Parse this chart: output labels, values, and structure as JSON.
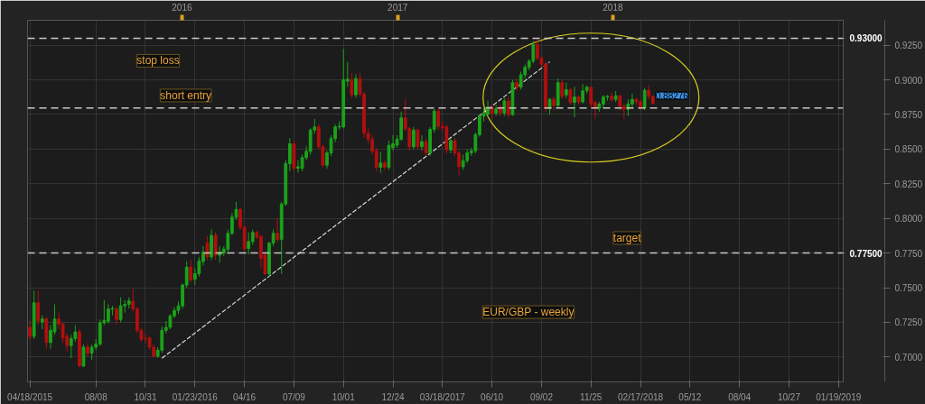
{
  "chart_data": {
    "type": "candlestick",
    "x": [
      "2015-04-18",
      "2015-04-25",
      "2015-05-02",
      "2015-05-09",
      "2015-05-16",
      "2015-05-23",
      "2015-05-30",
      "2015-06-06",
      "2015-06-13",
      "2015-06-20",
      "2015-06-27",
      "2015-07-04",
      "2015-07-11",
      "2015-07-18",
      "2015-07-25",
      "2015-08-01",
      "2015-08-08",
      "2015-08-15",
      "2015-08-22",
      "2015-08-29",
      "2015-09-05",
      "2015-09-12",
      "2015-09-19",
      "2015-09-26",
      "2015-10-03",
      "2015-10-10",
      "2015-10-17",
      "2015-10-24",
      "2015-10-31",
      "2015-11-07",
      "2015-11-14",
      "2015-11-21",
      "2015-11-28",
      "2015-12-05",
      "2015-12-12",
      "2015-12-19",
      "2015-12-26",
      "2016-01-02",
      "2016-01-09",
      "2016-01-16",
      "2016-01-23",
      "2016-01-30",
      "2016-02-06",
      "2016-02-13",
      "2016-02-20",
      "2016-02-27",
      "2016-03-05",
      "2016-03-12",
      "2016-03-19",
      "2016-03-26",
      "2016-04-02",
      "2016-04-09",
      "2016-04-16",
      "2016-04-23",
      "2016-04-30",
      "2016-05-07",
      "2016-05-14",
      "2016-05-21",
      "2016-05-28",
      "2016-06-04",
      "2016-06-11",
      "2016-06-18",
      "2016-06-25",
      "2016-07-02",
      "2016-07-09",
      "2016-07-16",
      "2016-07-23",
      "2016-07-30",
      "2016-08-06",
      "2016-08-13",
      "2016-08-20",
      "2016-08-27",
      "2016-09-03",
      "2016-09-10",
      "2016-09-17",
      "2016-09-24",
      "2016-10-01",
      "2016-10-08",
      "2016-10-15",
      "2016-10-22",
      "2016-10-29",
      "2016-11-05",
      "2016-11-12",
      "2016-11-19",
      "2016-11-26",
      "2016-12-03",
      "2016-12-10",
      "2016-12-17",
      "2016-12-24",
      "2016-12-31",
      "2017-01-07",
      "2017-01-14",
      "2017-01-21",
      "2017-01-28",
      "2017-02-04",
      "2017-02-11",
      "2017-02-18",
      "2017-02-25",
      "2017-03-04",
      "2017-03-11",
      "2017-03-18",
      "2017-03-25",
      "2017-04-01",
      "2017-04-08",
      "2017-04-15",
      "2017-04-22",
      "2017-04-29",
      "2017-05-06",
      "2017-05-13",
      "2017-05-20",
      "2017-05-27",
      "2017-06-03",
      "2017-06-10",
      "2017-06-17",
      "2017-06-24",
      "2017-07-01",
      "2017-07-08",
      "2017-07-15",
      "2017-07-22",
      "2017-07-29",
      "2017-08-05",
      "2017-08-12",
      "2017-08-19",
      "2017-08-26",
      "2017-09-02",
      "2017-09-09",
      "2017-09-16",
      "2017-09-23",
      "2017-09-30",
      "2017-10-07",
      "2017-10-14",
      "2017-10-21",
      "2017-10-28",
      "2017-11-04",
      "2017-11-11",
      "2017-11-18",
      "2017-11-25",
      "2017-12-02",
      "2017-12-09",
      "2017-12-16",
      "2017-12-23",
      "2017-12-30",
      "2018-01-06",
      "2018-01-13",
      "2018-01-20",
      "2018-01-27",
      "2018-02-03",
      "2018-02-10",
      "2018-02-17",
      "2018-02-24",
      "2018-03-03",
      "2018-03-10"
    ],
    "ohlc": [
      [
        0.7214,
        0.726,
        0.712,
        0.7148
      ],
      [
        0.7148,
        0.7479,
        0.713,
        0.7391
      ],
      [
        0.7391,
        0.748,
        0.723,
        0.7259
      ],
      [
        0.7252,
        0.73,
        0.72,
        0.7274
      ],
      [
        0.7274,
        0.729,
        0.706,
        0.7104
      ],
      [
        0.7104,
        0.723,
        0.706,
        0.7192
      ],
      [
        0.7181,
        0.738,
        0.716,
        0.7274
      ],
      [
        0.7274,
        0.732,
        0.72,
        0.7236
      ],
      [
        0.7236,
        0.725,
        0.71,
        0.7137
      ],
      [
        0.7148,
        0.717,
        0.704,
        0.7082
      ],
      [
        0.7082,
        0.716,
        0.699,
        0.7133
      ],
      [
        0.7133,
        0.723,
        0.711,
        0.7181
      ],
      [
        0.7181,
        0.72,
        0.693,
        0.6934
      ],
      [
        0.6934,
        0.709,
        0.693,
        0.7071
      ],
      [
        0.7071,
        0.71,
        0.7,
        0.7027
      ],
      [
        0.7027,
        0.709,
        0.698,
        0.7071
      ],
      [
        0.7071,
        0.713,
        0.705,
        0.7093
      ],
      [
        0.7093,
        0.727,
        0.708,
        0.7247
      ],
      [
        0.7247,
        0.741,
        0.723,
        0.7265
      ],
      [
        0.7258,
        0.738,
        0.724,
        0.7347
      ],
      [
        0.7345,
        0.737,
        0.73,
        0.735
      ],
      [
        0.7347,
        0.736,
        0.723,
        0.727
      ],
      [
        0.727,
        0.743,
        0.725,
        0.7369
      ],
      [
        0.7369,
        0.741,
        0.732,
        0.738
      ],
      [
        0.738,
        0.743,
        0.735,
        0.7406
      ],
      [
        0.7402,
        0.749,
        0.733,
        0.7347
      ],
      [
        0.7347,
        0.736,
        0.717,
        0.7192
      ],
      [
        0.7192,
        0.721,
        0.711,
        0.7126
      ],
      [
        0.7135,
        0.717,
        0.71,
        0.7133
      ],
      [
        0.7137,
        0.715,
        0.705,
        0.7071
      ],
      [
        0.7071,
        0.709,
        0.6995,
        0.7005
      ],
      [
        0.7005,
        0.707,
        0.6994,
        0.7049
      ],
      [
        0.7049,
        0.722,
        0.703,
        0.7192
      ],
      [
        0.7192,
        0.726,
        0.717,
        0.7214
      ],
      [
        0.7214,
        0.731,
        0.72,
        0.7296
      ],
      [
        0.7296,
        0.736,
        0.728,
        0.7336
      ],
      [
        0.7336,
        0.74,
        0.731,
        0.7369
      ],
      [
        0.7369,
        0.753,
        0.735,
        0.7519
      ],
      [
        0.7519,
        0.769,
        0.75,
        0.7649
      ],
      [
        0.7649,
        0.77,
        0.754,
        0.7556
      ],
      [
        0.7561,
        0.764,
        0.752,
        0.7601
      ],
      [
        0.7601,
        0.772,
        0.758,
        0.7693
      ],
      [
        0.7689,
        0.78,
        0.766,
        0.7756
      ],
      [
        0.7822,
        0.787,
        0.77,
        0.7722
      ],
      [
        0.7722,
        0.792,
        0.77,
        0.7877
      ],
      [
        0.7877,
        0.79,
        0.77,
        0.7734
      ],
      [
        0.7734,
        0.78,
        0.768,
        0.7756
      ],
      [
        0.7751,
        0.78,
        0.773,
        0.7778
      ],
      [
        0.7778,
        0.792,
        0.776,
        0.7892
      ],
      [
        0.7892,
        0.804,
        0.788,
        0.8009
      ],
      [
        0.8009,
        0.812,
        0.799,
        0.8065
      ],
      [
        0.8065,
        0.808,
        0.792,
        0.7937
      ],
      [
        0.7937,
        0.795,
        0.776,
        0.7782
      ],
      [
        0.7782,
        0.79,
        0.774,
        0.7833
      ],
      [
        0.7833,
        0.792,
        0.781,
        0.7899
      ],
      [
        0.7899,
        0.791,
        0.785,
        0.7866
      ],
      [
        0.787,
        0.788,
        0.764,
        0.7711
      ],
      [
        0.7734,
        0.775,
        0.759,
        0.7601
      ],
      [
        0.7601,
        0.783,
        0.758,
        0.7822
      ],
      [
        0.7822,
        0.792,
        0.78,
        0.7892
      ],
      [
        0.7892,
        0.8,
        0.783,
        0.7848
      ],
      [
        0.7848,
        0.812,
        0.76,
        0.8104
      ],
      [
        0.8104,
        0.842,
        0.809,
        0.8396
      ],
      [
        0.8395,
        0.858,
        0.834,
        0.8539
      ],
      [
        0.8539,
        0.856,
        0.834,
        0.8362
      ],
      [
        0.8362,
        0.842,
        0.833,
        0.8373
      ],
      [
        0.8362,
        0.846,
        0.834,
        0.8439
      ],
      [
        0.8439,
        0.852,
        0.842,
        0.8484
      ],
      [
        0.8484,
        0.865,
        0.846,
        0.8638
      ],
      [
        0.8638,
        0.872,
        0.861,
        0.866
      ],
      [
        0.866,
        0.868,
        0.85,
        0.8517
      ],
      [
        0.8517,
        0.853,
        0.837,
        0.8384
      ],
      [
        0.8384,
        0.849,
        0.836,
        0.8473
      ],
      [
        0.8473,
        0.86,
        0.845,
        0.8576
      ],
      [
        0.8576,
        0.868,
        0.855,
        0.866
      ],
      [
        0.866,
        0.87,
        0.864,
        0.8665
      ],
      [
        0.866,
        0.9223,
        0.865,
        0.9002
      ],
      [
        0.899,
        0.913,
        0.895,
        0.9005
      ],
      [
        0.9002,
        0.905,
        0.887,
        0.8892
      ],
      [
        0.8892,
        0.904,
        0.887,
        0.9009
      ],
      [
        0.9009,
        0.905,
        0.888,
        0.8898
      ],
      [
        0.8898,
        0.891,
        0.858,
        0.8616
      ],
      [
        0.8616,
        0.865,
        0.854,
        0.8572
      ],
      [
        0.8572,
        0.86,
        0.846,
        0.8484
      ],
      [
        0.8488,
        0.851,
        0.834,
        0.8369
      ],
      [
        0.8369,
        0.848,
        0.833,
        0.84
      ],
      [
        0.84,
        0.842,
        0.835,
        0.8369
      ],
      [
        0.8369,
        0.856,
        0.835,
        0.8528
      ],
      [
        0.851,
        0.86,
        0.849,
        0.8539
      ],
      [
        0.8528,
        0.86,
        0.851,
        0.8572
      ],
      [
        0.8572,
        0.877,
        0.856,
        0.8726
      ],
      [
        0.8726,
        0.886,
        0.863,
        0.8649
      ],
      [
        0.8649,
        0.866,
        0.849,
        0.8517
      ],
      [
        0.8517,
        0.866,
        0.85,
        0.8638
      ],
      [
        0.8638,
        0.865,
        0.85,
        0.8517
      ],
      [
        0.8517,
        0.86,
        0.849,
        0.8554
      ],
      [
        0.8554,
        0.858,
        0.845,
        0.8473
      ],
      [
        0.8473,
        0.866,
        0.845,
        0.8642
      ],
      [
        0.8642,
        0.879,
        0.862,
        0.8775
      ],
      [
        0.8775,
        0.879,
        0.864,
        0.8664
      ],
      [
        0.8664,
        0.87,
        0.863,
        0.8655
      ],
      [
        0.866,
        0.868,
        0.847,
        0.8495
      ],
      [
        0.8495,
        0.858,
        0.847,
        0.8561
      ],
      [
        0.8561,
        0.858,
        0.845,
        0.8473
      ],
      [
        0.8473,
        0.849,
        0.831,
        0.8373
      ],
      [
        0.8373,
        0.846,
        0.835,
        0.8417
      ],
      [
        0.8417,
        0.85,
        0.84,
        0.8473
      ],
      [
        0.8473,
        0.851,
        0.845,
        0.8488
      ],
      [
        0.8488,
        0.862,
        0.847,
        0.8605
      ],
      [
        0.8605,
        0.875,
        0.859,
        0.8738
      ],
      [
        0.8738,
        0.88,
        0.87,
        0.876
      ],
      [
        0.8753,
        0.885,
        0.873,
        0.8804
      ],
      [
        0.8804,
        0.883,
        0.872,
        0.876
      ],
      [
        0.876,
        0.882,
        0.874,
        0.8793
      ],
      [
        0.8804,
        0.882,
        0.874,
        0.876
      ],
      [
        0.876,
        0.887,
        0.874,
        0.8848
      ],
      [
        0.8848,
        0.888,
        0.873,
        0.8749
      ],
      [
        0.8749,
        0.9,
        0.874,
        0.898
      ],
      [
        0.898,
        0.901,
        0.892,
        0.8947
      ],
      [
        0.8947,
        0.906,
        0.893,
        0.9036
      ],
      [
        0.9036,
        0.911,
        0.901,
        0.9091
      ],
      [
        0.9091,
        0.915,
        0.907,
        0.9135
      ],
      [
        0.9135,
        0.928,
        0.912,
        0.9256
      ],
      [
        0.9256,
        0.93,
        0.914,
        0.9157
      ],
      [
        0.9157,
        0.917,
        0.909,
        0.9113
      ],
      [
        0.9113,
        0.913,
        0.877,
        0.8793
      ],
      [
        0.8793,
        0.887,
        0.875,
        0.8859
      ],
      [
        0.8859,
        0.888,
        0.878,
        0.8815
      ],
      [
        0.8815,
        0.901,
        0.88,
        0.898
      ],
      [
        0.898,
        0.9,
        0.886,
        0.8881
      ],
      [
        0.8892,
        0.898,
        0.887,
        0.893
      ],
      [
        0.893,
        0.894,
        0.882,
        0.8837
      ],
      [
        0.8837,
        0.895,
        0.873,
        0.8877
      ],
      [
        0.8877,
        0.889,
        0.882,
        0.8841
      ],
      [
        0.8841,
        0.897,
        0.883,
        0.8921
      ],
      [
        0.8921,
        0.896,
        0.89,
        0.8947
      ],
      [
        0.8947,
        0.895,
        0.88,
        0.8826
      ],
      [
        0.8837,
        0.885,
        0.872,
        0.8793
      ],
      [
        0.8793,
        0.884,
        0.877,
        0.8826
      ],
      [
        0.8826,
        0.889,
        0.88,
        0.8877
      ],
      [
        0.8877,
        0.889,
        0.885,
        0.8881
      ],
      [
        0.8881,
        0.891,
        0.884,
        0.8859
      ],
      [
        0.8859,
        0.892,
        0.884,
        0.8885
      ],
      [
        0.8885,
        0.889,
        0.878,
        0.881
      ],
      [
        0.881,
        0.883,
        0.872,
        0.8788
      ],
      [
        0.8788,
        0.886,
        0.874,
        0.8826
      ],
      [
        0.8826,
        0.89,
        0.88,
        0.8859
      ],
      [
        0.8859,
        0.887,
        0.882,
        0.8841
      ],
      [
        0.8841,
        0.886,
        0.878,
        0.8797
      ],
      [
        0.8797,
        0.894,
        0.878,
        0.8925
      ],
      [
        0.8925,
        0.896,
        0.886,
        0.8881
      ],
      [
        0.8881,
        0.889,
        0.882,
        0.883
      ]
    ],
    "colors": [
      "#b30f0f",
      "#1aa31a",
      "#b30f0f",
      "#1aa31a",
      "#b30f0f",
      "#1aa31a",
      "#1aa31a",
      "#b30f0f",
      "#b30f0f",
      "#b30f0f",
      "#1aa31a",
      "#1aa31a",
      "#b30f0f",
      "#1aa31a",
      "#b30f0f",
      "#1aa31a",
      "#1aa31a",
      "#1aa31a",
      "#1aa31a",
      "#1aa31a",
      "#1aa31a",
      "#b30f0f",
      "#1aa31a",
      "#1aa31a",
      "#1aa31a",
      "#b30f0f",
      "#b30f0f",
      "#b30f0f",
      "#b30f0f",
      "#b30f0f",
      "#b30f0f",
      "#1aa31a",
      "#1aa31a",
      "#1aa31a",
      "#1aa31a",
      "#1aa31a",
      "#1aa31a",
      "#1aa31a",
      "#1aa31a",
      "#b30f0f",
      "#1aa31a",
      "#1aa31a",
      "#1aa31a",
      "#b30f0f",
      "#1aa31a",
      "#b30f0f",
      "#1aa31a",
      "#1aa31a",
      "#1aa31a",
      "#1aa31a",
      "#1aa31a",
      "#b30f0f",
      "#b30f0f",
      "#1aa31a",
      "#1aa31a",
      "#b30f0f",
      "#b30f0f",
      "#b30f0f",
      "#1aa31a",
      "#1aa31a",
      "#b30f0f",
      "#1aa31a",
      "#1aa31a",
      "#1aa31a",
      "#b30f0f",
      "#1aa31a",
      "#1aa31a",
      "#1aa31a",
      "#1aa31a",
      "#1aa31a",
      "#b30f0f",
      "#b30f0f",
      "#1aa31a",
      "#1aa31a",
      "#1aa31a",
      "#1aa31a",
      "#1aa31a",
      "#1aa31a",
      "#b30f0f",
      "#1aa31a",
      "#b30f0f",
      "#b30f0f",
      "#b30f0f",
      "#b30f0f",
      "#b30f0f",
      "#1aa31a",
      "#b30f0f",
      "#1aa31a",
      "#1aa31a",
      "#1aa31a",
      "#1aa31a",
      "#b30f0f",
      "#b30f0f",
      "#1aa31a",
      "#b30f0f",
      "#1aa31a",
      "#b30f0f",
      "#1aa31a",
      "#1aa31a",
      "#b30f0f",
      "#b30f0f",
      "#b30f0f",
      "#1aa31a",
      "#b30f0f",
      "#b30f0f",
      "#1aa31a",
      "#1aa31a",
      "#1aa31a",
      "#1aa31a",
      "#1aa31a",
      "#1aa31a",
      "#1aa31a",
      "#b30f0f",
      "#1aa31a",
      "#b30f0f",
      "#1aa31a",
      "#b30f0f",
      "#1aa31a",
      "#b30f0f",
      "#1aa31a",
      "#1aa31a",
      "#1aa31a",
      "#1aa31a",
      "#b30f0f",
      "#b30f0f",
      "#b30f0f",
      "#1aa31a",
      "#b30f0f",
      "#1aa31a",
      "#b30f0f",
      "#1aa31a",
      "#b30f0f",
      "#1aa31a",
      "#b30f0f",
      "#1aa31a",
      "#1aa31a",
      "#b30f0f",
      "#b30f0f",
      "#1aa31a",
      "#1aa31a",
      "#1aa31a",
      "#b30f0f",
      "#1aa31a",
      "#b30f0f",
      "#b30f0f",
      "#1aa31a",
      "#1aa31a",
      "#b30f0f",
      "#b30f0f",
      "#1aa31a",
      "#b30f0f",
      "#b30f0f"
    ],
    "series": [
      {
        "type": "line",
        "x": [
          "2015-11-28",
          "2017-09-16"
        ],
        "values": [
          0.6991,
          0.913
        ],
        "color": "#d8d8d8",
        "line_style": "dashed"
      }
    ],
    "xlim": [
      "2015-04-14",
      "2019-01-27"
    ],
    "xticks": [
      {
        "value": "2015-04-18",
        "label": "04/18/2015"
      },
      {
        "value": "2015-08-08",
        "label": "08/08"
      },
      {
        "value": "2015-10-31",
        "label": "10/31"
      },
      {
        "value": "2016-01-23",
        "label": "01/23/2016"
      },
      {
        "value": "2016-04-16",
        "label": "04/16"
      },
      {
        "value": "2016-07-09",
        "label": "07/09"
      },
      {
        "value": "2016-10-01",
        "label": "10/01"
      },
      {
        "value": "2016-12-24",
        "label": "12/24"
      },
      {
        "value": "2017-03-18",
        "label": "03/18/2017"
      },
      {
        "value": "2017-06-10",
        "label": "06/10"
      },
      {
        "value": "2017-09-02",
        "label": "09/02"
      },
      {
        "value": "2017-11-25",
        "label": "11/25"
      },
      {
        "value": "2018-02-17",
        "label": "02/17/2018"
      },
      {
        "value": "2018-05-12",
        "label": "05/12"
      },
      {
        "value": "2018-08-04",
        "label": "08/04"
      },
      {
        "value": "2018-10-27",
        "label": "10/27"
      },
      {
        "value": "2019-01-19",
        "label": "01/19/2019"
      }
    ],
    "x2lim": [
      "2015-04-14",
      "2019-01-27"
    ],
    "x2ticks": [
      {
        "value": "2016-01-01",
        "label": "2016"
      },
      {
        "value": "2017-01-01",
        "label": "2017"
      },
      {
        "value": "2018-01-01",
        "label": "2018"
      }
    ],
    "ylim": [
      0.682,
      0.943
    ],
    "yticks": [
      {
        "value": 0.7,
        "label": "0.7000"
      },
      {
        "value": 0.725,
        "label": "0.7250"
      },
      {
        "value": 0.75,
        "label": "0.7500"
      },
      {
        "value": 0.775,
        "label": "0.7750"
      },
      {
        "value": 0.8,
        "label": "0.8000"
      },
      {
        "value": 0.825,
        "label": "0.8250"
      },
      {
        "value": 0.85,
        "label": "0.8500"
      },
      {
        "value": 0.875,
        "label": "0.8750"
      },
      {
        "value": 0.9,
        "label": "0.9000"
      },
      {
        "value": 0.925,
        "label": "0.9250"
      }
    ],
    "ref_lines": [
      {
        "axis": "y",
        "value": 0.93,
        "label": "0.93000",
        "color": "#c8c8c8",
        "line_style": "dashed"
      },
      {
        "axis": "y",
        "value": 0.8797,
        "label": null,
        "color": "#c8c8c8",
        "line_style": "dashed"
      },
      {
        "axis": "y",
        "value": 0.775,
        "label": "0.77500",
        "color": "#c8c8c8",
        "line_style": "dashed"
      }
    ],
    "annotations": [
      "stop loss",
      "short entry",
      "target",
      "EUR/GBP - weekly",
      {
        "text": "0.88276",
        "x": "2018-03-10",
        "y": 0.88276
      }
    ],
    "grid": true
  }
}
